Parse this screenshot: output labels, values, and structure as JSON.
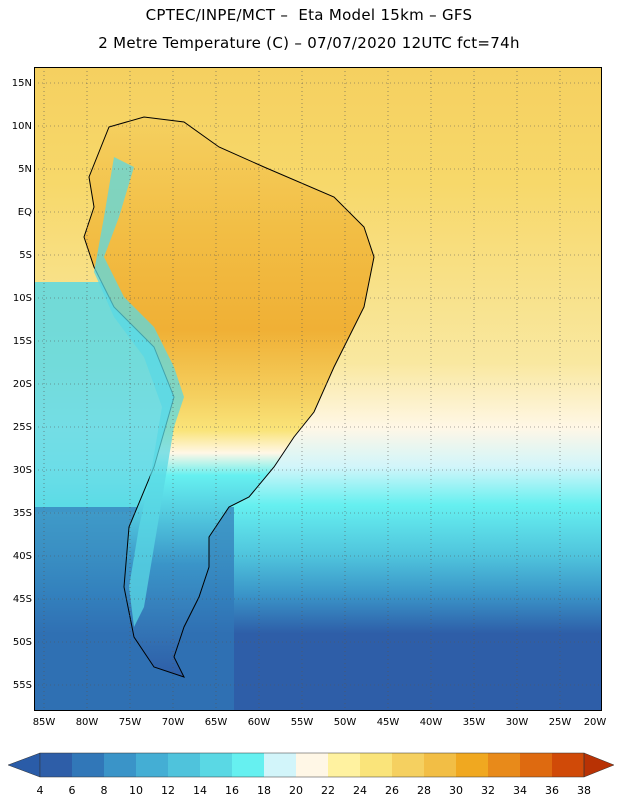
{
  "title_line1": "CPTEC/INPE/MCT –  Eta Model 15km – GFS",
  "title_line2": "2 Metre Temperature (C) – 07/07/2020 12UTC fct=74h",
  "lat_labels": [
    "15N",
    "10N",
    "5N",
    "EQ",
    "5S",
    "10S",
    "15S",
    "20S",
    "25S",
    "30S",
    "35S",
    "40S",
    "45S",
    "50S",
    "55S"
  ],
  "lon_labels": [
    "85W",
    "80W",
    "75W",
    "70W",
    "65W",
    "60W",
    "55W",
    "50W",
    "45W",
    "40W",
    "35W",
    "30W",
    "25W",
    "20W"
  ],
  "legend": {
    "labels": [
      "4",
      "6",
      "8",
      "10",
      "12",
      "14",
      "16",
      "18",
      "20",
      "22",
      "24",
      "26",
      "28",
      "30",
      "32",
      "34",
      "36",
      "38"
    ],
    "colors": [
      "#2e5ea8",
      "#3177b8",
      "#3a94c8",
      "#44aed4",
      "#4fc3dc",
      "#5ad8e4",
      "#66f0f0",
      "#d2f5fa",
      "#fff7e6",
      "#fff2a0",
      "#fae47a",
      "#f5d060",
      "#f2be45",
      "#f0a820",
      "#e88a1a",
      "#de6a10",
      "#d04a08",
      "#b83204"
    ],
    "below_color": "#2a5ca8",
    "above_color": "#b83204"
  }
}
